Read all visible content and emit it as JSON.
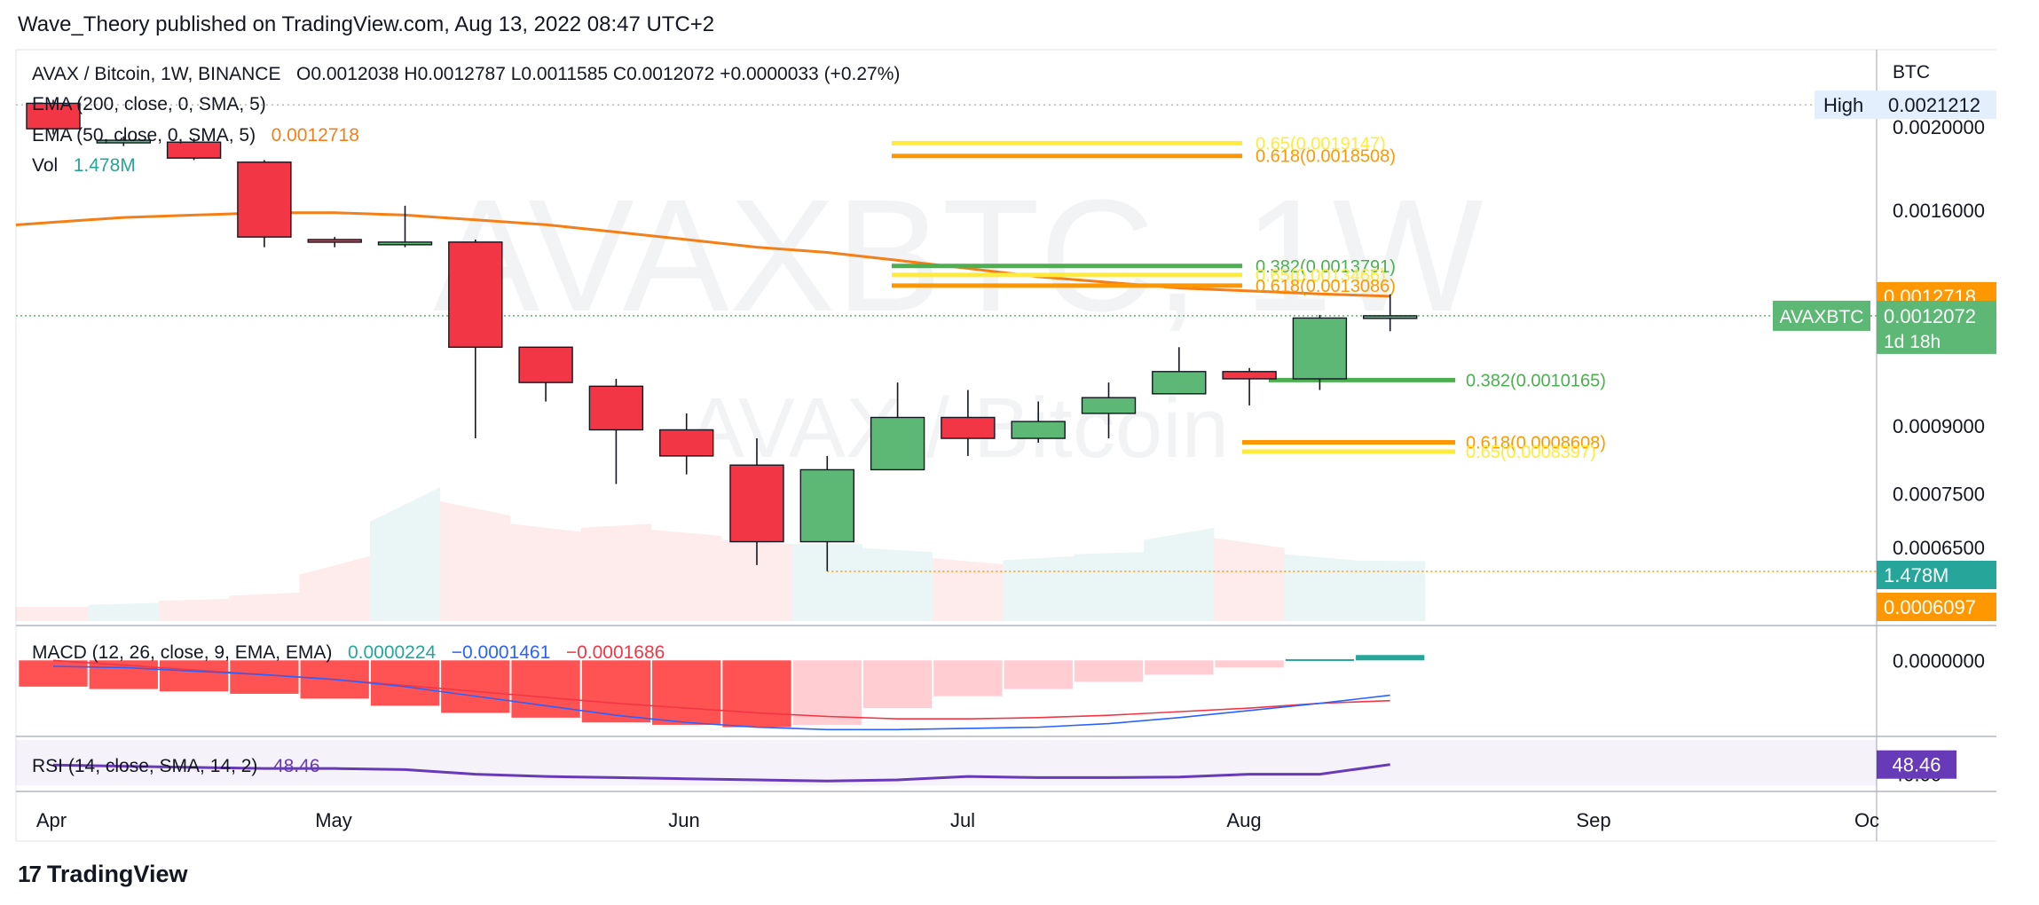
{
  "header": {
    "publisher": "Wave_Theory published on TradingView.com, Aug 13, 2022 08:47 UTC+2"
  },
  "footer": {
    "brand": "TradingView",
    "brand_mark": "17"
  },
  "watermark": {
    "symbol": "AVAXBTC, 1W",
    "description": "AVAX / Bitcoin"
  },
  "legend": {
    "symbol": "AVAX / Bitcoin, 1W, BINANCE",
    "ohlc": "O0.0012038  H0.0012787  L0.0011585  C0.0012072  +0.0000033 (+0.27%)",
    "ema200": "EMA (200, close, 0, SMA, 5)",
    "ema50": "EMA (50, close, 0, SMA, 5)",
    "ema50_value": "0.0012718",
    "vol_label": "Vol",
    "vol_value": "1.478M",
    "macd": "MACD (12, 26, close, 9, EMA, EMA)",
    "macd_hist": "0.0000224",
    "macd_line": "−0.0001461",
    "macd_signal": "−0.0001686",
    "rsi": "RSI (14, close, SMA, 14, 2)",
    "rsi_value": "48.46"
  },
  "colors": {
    "up": "#5cb874",
    "down": "#f23645",
    "ema": "#f57f17",
    "fib_yellow": "#ffeb3b",
    "fib_orange": "#ff9800",
    "fib_green": "#4caf50",
    "macd": "#2962ff",
    "signal": "#f23645",
    "rsi": "#673ab7",
    "vol_badge": "#26a69a"
  },
  "chart_data": {
    "type": "candlestick",
    "title": "AVAX / Bitcoin, 1W, BINANCE",
    "currency_label": "BTC",
    "y_scale": "log",
    "x_ticks": [
      "Apr",
      "May",
      "Jun",
      "Jul",
      "Aug",
      "Sep",
      "Oc"
    ],
    "y_ticks": [
      "0.0020000",
      "0.0016000",
      "0.0009000",
      "0.0007500",
      "0.0006500"
    ],
    "candles": [
      {
        "o": 0.00213,
        "h": 0.00215,
        "l": 0.00196,
        "c": 0.00199
      },
      {
        "o": 0.00192,
        "h": 0.00195,
        "l": 0.0019,
        "c": 0.00193
      },
      {
        "o": 0.00192,
        "h": 0.00194,
        "l": 0.00183,
        "c": 0.00184
      },
      {
        "o": 0.00182,
        "h": 0.00183,
        "l": 0.00145,
        "c": 0.00149
      },
      {
        "o": 0.00148,
        "h": 0.00149,
        "l": 0.00145,
        "c": 0.00147
      },
      {
        "o": 0.00147,
        "h": 0.00162,
        "l": 0.00145,
        "c": 0.00147
      },
      {
        "o": 0.00147,
        "h": 0.00148,
        "l": 0.00087,
        "c": 0.00111
      },
      {
        "o": 0.00111,
        "h": 0.00111,
        "l": 0.00096,
        "c": 0.00101
      },
      {
        "o": 0.001,
        "h": 0.00102,
        "l": 0.00077,
        "c": 0.00089
      },
      {
        "o": 0.00089,
        "h": 0.00093,
        "l": 0.00079,
        "c": 0.00083
      },
      {
        "o": 0.00081,
        "h": 0.00087,
        "l": 0.00062,
        "c": 0.00066
      },
      {
        "o": 0.00066,
        "h": 0.00083,
        "l": 0.00061,
        "c": 0.0008
      },
      {
        "o": 0.0008,
        "h": 0.00101,
        "l": 0.0008,
        "c": 0.00092
      },
      {
        "o": 0.00092,
        "h": 0.00099,
        "l": 0.00083,
        "c": 0.00087
      },
      {
        "o": 0.00087,
        "h": 0.00096,
        "l": 0.00086,
        "c": 0.00091
      },
      {
        "o": 0.00093,
        "h": 0.00101,
        "l": 0.00087,
        "c": 0.00097
      },
      {
        "o": 0.00098,
        "h": 0.00111,
        "l": 0.00098,
        "c": 0.00104
      },
      {
        "o": 0.00104,
        "h": 0.00105,
        "l": 0.00095,
        "c": 0.00102
      },
      {
        "o": 0.00102,
        "h": 0.00121,
        "l": 0.00099,
        "c": 0.0012
      },
      {
        "o": 0.0012038,
        "h": 0.0012787,
        "l": 0.0011585,
        "c": 0.0012072
      }
    ],
    "ema50": [
      0.00155,
      0.00157,
      0.00158,
      0.00159,
      0.00159,
      0.00158,
      0.00156,
      0.00154,
      0.00151,
      0.00148,
      0.00145,
      0.00143,
      0.0014,
      0.00137,
      0.00134,
      0.00132,
      0.0013,
      0.00129,
      0.00128,
      0.0012718
    ],
    "volume_ylim": [
      0,
      3.5
    ],
    "volume": [
      0.35,
      0.45,
      0.55,
      0.7,
      1.6,
      3.3,
      2.6,
      2.2,
      2.4,
      2.1,
      1.9,
      1.9,
      1.7,
      1.4,
      1.6,
      1.7,
      2.3,
      1.8,
      1.5,
      1.478
    ],
    "fibonacci": [
      {
        "label": "0.65(0.0019147)",
        "value": 0.0019147,
        "color": "#ffeb3b"
      },
      {
        "label": "0.618(0.0018508)",
        "value": 0.0018508,
        "color": "#ff9800"
      },
      {
        "label": "0.382(0.0013791)",
        "value": 0.0013791,
        "color": "#4caf50"
      },
      {
        "label": "0.65(0.0013466)",
        "value": 0.0013466,
        "color": "#ffeb3b"
      },
      {
        "label": "0.618(0.0013086)",
        "value": 0.0013086,
        "color": "#ff9800"
      },
      {
        "label": "0.382(0.0010165)",
        "value": 0.0010165,
        "color": "#4caf50"
      },
      {
        "label": "0.618(0.0008608)",
        "value": 0.0008608,
        "color": "#ff9800"
      },
      {
        "label": "0.65(0.0008397)",
        "value": 0.0008397,
        "color": "#ffeb3b"
      }
    ],
    "horizontal_levels": [
      {
        "label": "AVAXBTC",
        "value": 0.0012072,
        "color": "#5cb874",
        "style": "dotted"
      },
      {
        "label": "",
        "value": 0.0006097,
        "color": "#ff9800",
        "style": "dotted"
      }
    ],
    "price_badges": [
      {
        "text": "0.0021212",
        "kind": "high",
        "tag": "High"
      },
      {
        "text": "0.0012718",
        "kind": "ema"
      },
      {
        "text": "0.0012072",
        "kind": "last",
        "tag": "AVAXBTC",
        "extra": "1d 18h"
      },
      {
        "text": "1.478M",
        "kind": "vol"
      },
      {
        "text": "0.0006097",
        "kind": "level"
      }
    ],
    "macd_ylim": [
      -0.0003,
      0.00012
    ],
    "macd_y_ticks": [
      "0.0000000"
    ],
    "macd_hist": [
      -0.00011,
      -0.00012,
      -0.00013,
      -0.00014,
      -0.00016,
      -0.00019,
      -0.00022,
      -0.00024,
      -0.00026,
      -0.00027,
      -0.00028,
      -0.00027,
      -0.0002,
      -0.00015,
      -0.00012,
      -9e-05,
      -6e-05,
      -3e-05,
      5e-06,
      2.24e-05
    ],
    "macd_line": [
      -2.5e-05,
      -3e-05,
      -4.5e-05,
      -6e-05,
      -8e-05,
      -0.00011,
      -0.00015,
      -0.00019,
      -0.00023,
      -0.00026,
      -0.00028,
      -0.00029,
      -0.00029,
      -0.000285,
      -0.00028,
      -0.000265,
      -0.00024,
      -0.00021,
      -0.00018,
      -0.0001461
    ],
    "macd_signal": [
      0.0,
      -2e-05,
      -4e-05,
      -6e-05,
      -8e-05,
      -0.000105,
      -0.00013,
      -0.000155,
      -0.00018,
      -0.0002,
      -0.00022,
      -0.000235,
      -0.000245,
      -0.000245,
      -0.00024,
      -0.00023,
      -0.000215,
      -0.0002,
      -0.00018,
      -0.0001686
    ],
    "rsi_ylim": [
      28,
      70
    ],
    "rsi_y_ticks": [
      "40.00"
    ],
    "rsi_bands": [
      30,
      70
    ],
    "rsi": [
      48,
      47,
      46,
      45,
      45,
      44,
      40,
      38,
      37,
      36,
      35,
      34,
      35,
      38,
      37,
      37,
      37.5,
      40,
      40,
      48.46
    ]
  }
}
